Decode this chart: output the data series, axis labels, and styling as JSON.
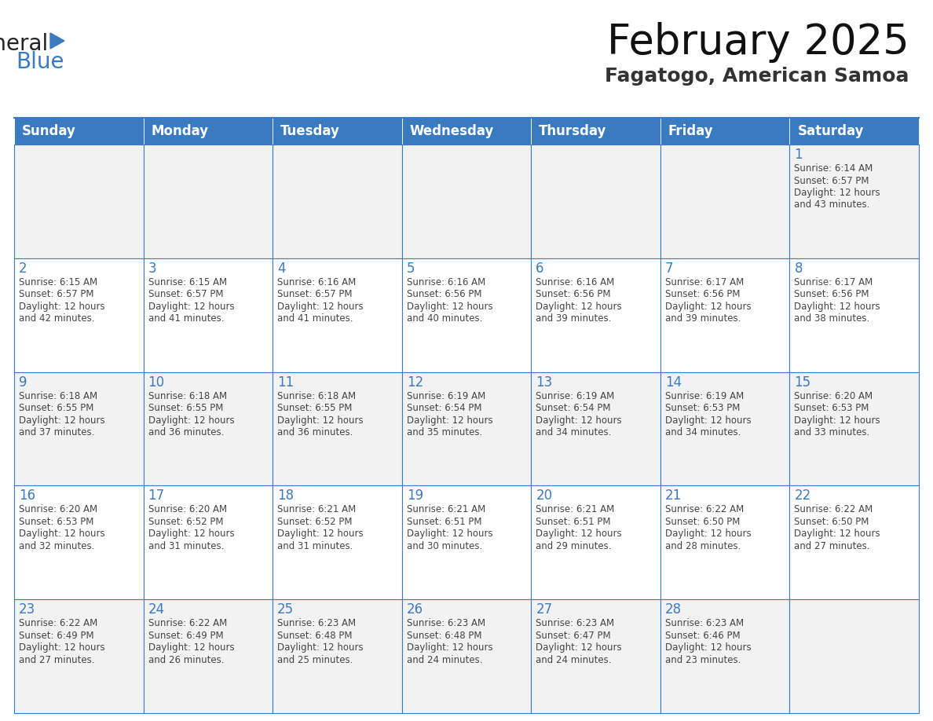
{
  "title": "February 2025",
  "subtitle": "Fagatogo, American Samoa",
  "header_bg": "#3a7abf",
  "header_text": "#ffffff",
  "cell_bg_light": "#f2f2f2",
  "cell_bg_white": "#ffffff",
  "cell_border": "#3a7abf",
  "day_number_color": "#3a7abf",
  "text_color": "#444444",
  "days_of_week": [
    "Sunday",
    "Monday",
    "Tuesday",
    "Wednesday",
    "Thursday",
    "Friday",
    "Saturday"
  ],
  "weeks": [
    [
      null,
      null,
      null,
      null,
      null,
      null,
      {
        "day": 1,
        "sunrise": "6:14 AM",
        "sunset": "6:57 PM",
        "daylight": "12 hours\nand 43 minutes."
      }
    ],
    [
      {
        "day": 2,
        "sunrise": "6:15 AM",
        "sunset": "6:57 PM",
        "daylight": "12 hours\nand 42 minutes."
      },
      {
        "day": 3,
        "sunrise": "6:15 AM",
        "sunset": "6:57 PM",
        "daylight": "12 hours\nand 41 minutes."
      },
      {
        "day": 4,
        "sunrise": "6:16 AM",
        "sunset": "6:57 PM",
        "daylight": "12 hours\nand 41 minutes."
      },
      {
        "day": 5,
        "sunrise": "6:16 AM",
        "sunset": "6:56 PM",
        "daylight": "12 hours\nand 40 minutes."
      },
      {
        "day": 6,
        "sunrise": "6:16 AM",
        "sunset": "6:56 PM",
        "daylight": "12 hours\nand 39 minutes."
      },
      {
        "day": 7,
        "sunrise": "6:17 AM",
        "sunset": "6:56 PM",
        "daylight": "12 hours\nand 39 minutes."
      },
      {
        "day": 8,
        "sunrise": "6:17 AM",
        "sunset": "6:56 PM",
        "daylight": "12 hours\nand 38 minutes."
      }
    ],
    [
      {
        "day": 9,
        "sunrise": "6:18 AM",
        "sunset": "6:55 PM",
        "daylight": "12 hours\nand 37 minutes."
      },
      {
        "day": 10,
        "sunrise": "6:18 AM",
        "sunset": "6:55 PM",
        "daylight": "12 hours\nand 36 minutes."
      },
      {
        "day": 11,
        "sunrise": "6:18 AM",
        "sunset": "6:55 PM",
        "daylight": "12 hours\nand 36 minutes."
      },
      {
        "day": 12,
        "sunrise": "6:19 AM",
        "sunset": "6:54 PM",
        "daylight": "12 hours\nand 35 minutes."
      },
      {
        "day": 13,
        "sunrise": "6:19 AM",
        "sunset": "6:54 PM",
        "daylight": "12 hours\nand 34 minutes."
      },
      {
        "day": 14,
        "sunrise": "6:19 AM",
        "sunset": "6:53 PM",
        "daylight": "12 hours\nand 34 minutes."
      },
      {
        "day": 15,
        "sunrise": "6:20 AM",
        "sunset": "6:53 PM",
        "daylight": "12 hours\nand 33 minutes."
      }
    ],
    [
      {
        "day": 16,
        "sunrise": "6:20 AM",
        "sunset": "6:53 PM",
        "daylight": "12 hours\nand 32 minutes."
      },
      {
        "day": 17,
        "sunrise": "6:20 AM",
        "sunset": "6:52 PM",
        "daylight": "12 hours\nand 31 minutes."
      },
      {
        "day": 18,
        "sunrise": "6:21 AM",
        "sunset": "6:52 PM",
        "daylight": "12 hours\nand 31 minutes."
      },
      {
        "day": 19,
        "sunrise": "6:21 AM",
        "sunset": "6:51 PM",
        "daylight": "12 hours\nand 30 minutes."
      },
      {
        "day": 20,
        "sunrise": "6:21 AM",
        "sunset": "6:51 PM",
        "daylight": "12 hours\nand 29 minutes."
      },
      {
        "day": 21,
        "sunrise": "6:22 AM",
        "sunset": "6:50 PM",
        "daylight": "12 hours\nand 28 minutes."
      },
      {
        "day": 22,
        "sunrise": "6:22 AM",
        "sunset": "6:50 PM",
        "daylight": "12 hours\nand 27 minutes."
      }
    ],
    [
      {
        "day": 23,
        "sunrise": "6:22 AM",
        "sunset": "6:49 PM",
        "daylight": "12 hours\nand 27 minutes."
      },
      {
        "day": 24,
        "sunrise": "6:22 AM",
        "sunset": "6:49 PM",
        "daylight": "12 hours\nand 26 minutes."
      },
      {
        "day": 25,
        "sunrise": "6:23 AM",
        "sunset": "6:48 PM",
        "daylight": "12 hours\nand 25 minutes."
      },
      {
        "day": 26,
        "sunrise": "6:23 AM",
        "sunset": "6:48 PM",
        "daylight": "12 hours\nand 24 minutes."
      },
      {
        "day": 27,
        "sunrise": "6:23 AM",
        "sunset": "6:47 PM",
        "daylight": "12 hours\nand 24 minutes."
      },
      {
        "day": 28,
        "sunrise": "6:23 AM",
        "sunset": "6:46 PM",
        "daylight": "12 hours\nand 23 minutes."
      },
      null
    ]
  ],
  "logo_general_color": "#222222",
  "logo_blue_color": "#3a7abf",
  "logo_triangle_color": "#3a7abf"
}
